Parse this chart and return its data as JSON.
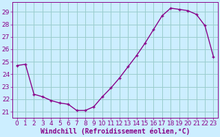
{
  "x": [
    0,
    1,
    2,
    3,
    4,
    5,
    6,
    7,
    8,
    9,
    10,
    11,
    12,
    13,
    14,
    15,
    16,
    17,
    18,
    19,
    20,
    21,
    22,
    23
  ],
  "y": [
    24.7,
    24.8,
    22.4,
    22.2,
    21.9,
    21.7,
    21.6,
    21.1,
    21.1,
    21.4,
    22.2,
    22.9,
    23.7,
    24.6,
    25.5,
    26.5,
    27.6,
    28.7,
    29.3,
    29.2,
    29.1,
    28.8,
    27.9,
    25.4
  ],
  "line_color": "#880088",
  "marker": "+",
  "bg_color": "#cceeff",
  "grid_color": "#99cccc",
  "xlabel": "Windchill (Refroidissement éolien,°C)",
  "ylabel_ticks": [
    21,
    22,
    23,
    24,
    25,
    26,
    27,
    28,
    29
  ],
  "ylim": [
    20.5,
    29.8
  ],
  "xlim": [
    -0.5,
    23.5
  ],
  "tick_color": "#880088",
  "xlabel_color": "#880088",
  "xlabel_fontsize": 7,
  "tick_fontsize": 6.5,
  "markersize": 3,
  "linewidth": 1.0
}
